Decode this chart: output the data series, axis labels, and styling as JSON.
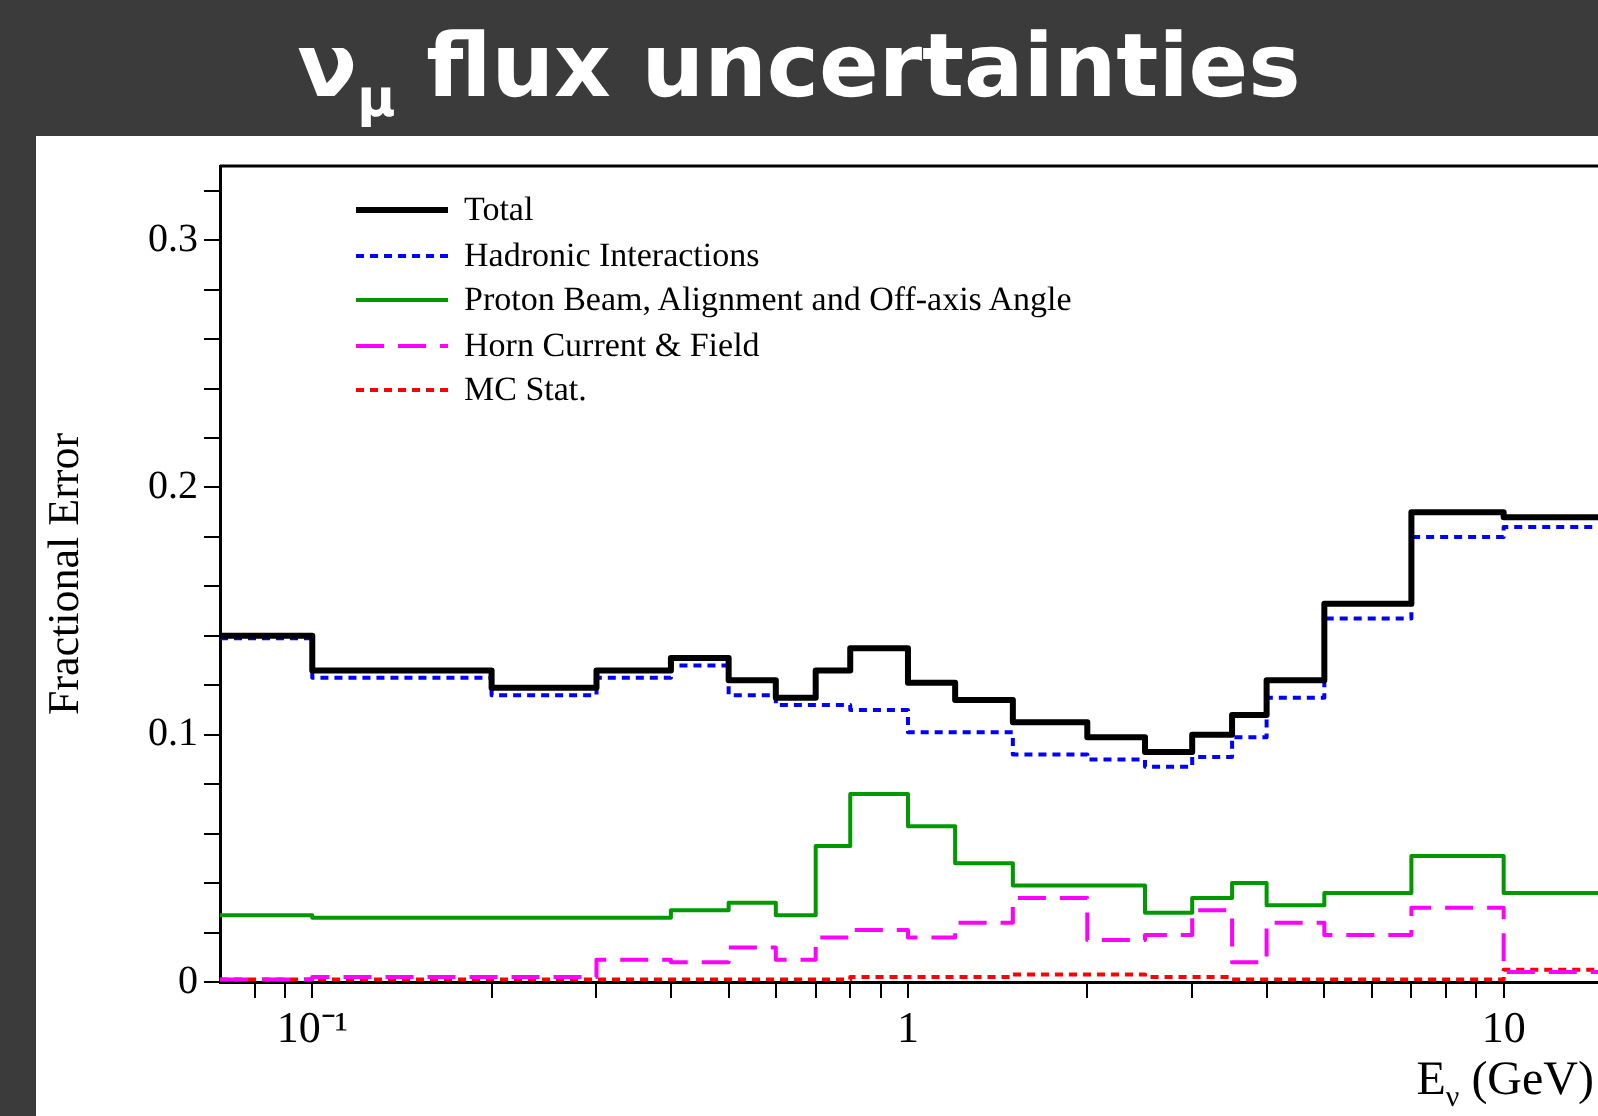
{
  "chart_data": {
    "type": "step",
    "title": "ν$_{μ}$ flux uncertainties",
    "xlabel": "E$_{ν}$ (GeV)",
    "ylabel": "Fractional Error",
    "x": [
      0.07,
      0.1,
      0.2,
      0.3,
      0.4,
      0.5,
      0.6,
      0.7,
      0.8,
      1.0,
      1.2,
      1.5,
      2.0,
      2.5,
      3.0,
      3.5,
      4.0,
      5.0,
      7.0,
      10.0,
      14.4
    ],
    "series": [
      {
        "name": "Total",
        "color": "#000000",
        "line_style": "solid",
        "values": [
          0.14,
          0.126,
          0.119,
          0.126,
          0.131,
          0.122,
          0.115,
          0.126,
          0.135,
          0.121,
          0.114,
          0.105,
          0.099,
          0.093,
          0.1,
          0.108,
          0.122,
          0.153,
          0.19,
          0.188,
          0.188
        ]
      },
      {
        "name": "Hadronic Interactions",
        "color": "#0000ff",
        "line_style": "dotted",
        "values": [
          0.139,
          0.123,
          0.116,
          0.123,
          0.128,
          0.116,
          0.112,
          0.112,
          0.11,
          0.101,
          0.101,
          0.092,
          0.09,
          0.087,
          0.091,
          0.099,
          0.115,
          0.147,
          0.18,
          0.184,
          0.184
        ]
      },
      {
        "name": "Proton Beam, Alignment and Off-axis Angle",
        "color": "#009900",
        "line_style": "solid",
        "values": [
          0.027,
          0.026,
          0.026,
          0.026,
          0.029,
          0.032,
          0.027,
          0.055,
          0.076,
          0.063,
          0.048,
          0.039,
          0.039,
          0.028,
          0.034,
          0.04,
          0.031,
          0.036,
          0.051,
          0.036,
          0.036
        ]
      },
      {
        "name": "Horn Current & Field",
        "color": "#ff00ff",
        "line_style": "dashed",
        "values": [
          0.001,
          0.002,
          0.002,
          0.009,
          0.008,
          0.014,
          0.009,
          0.018,
          0.021,
          0.018,
          0.024,
          0.034,
          0.017,
          0.019,
          0.029,
          0.008,
          0.024,
          0.019,
          0.03,
          0.004,
          0.004
        ]
      },
      {
        "name": "MC Stat.",
        "color": "#ff0000",
        "line_style": "dotted",
        "values": [
          0.001,
          0.001,
          0.001,
          0.001,
          0.001,
          0.001,
          0.001,
          0.001,
          0.002,
          0.002,
          0.002,
          0.003,
          0.003,
          0.002,
          0.002,
          0.001,
          0.001,
          0.001,
          0.001,
          0.005,
          0.005
        ]
      }
    ],
    "log": "x",
    "xlim": [
      0.07,
      14.4
    ],
    "xticks": [
      {
        "value": 0.08,
        "label": null
      },
      {
        "value": 0.09,
        "label": null
      },
      {
        "value": 0.1,
        "label": "10⁻¹"
      },
      {
        "value": 0.2,
        "label": null
      },
      {
        "value": 0.3,
        "label": null
      },
      {
        "value": 0.4,
        "label": null
      },
      {
        "value": 0.5,
        "label": null
      },
      {
        "value": 0.6,
        "label": null
      },
      {
        "value": 0.7,
        "label": null
      },
      {
        "value": 0.8,
        "label": null
      },
      {
        "value": 0.9,
        "label": null
      },
      1,
      {
        "value": 2,
        "label": null
      },
      {
        "value": 3,
        "label": null
      },
      {
        "value": 4,
        "label": null
      },
      {
        "value": 5,
        "label": null
      },
      {
        "value": 6,
        "label": null
      },
      {
        "value": 7,
        "label": null
      },
      {
        "value": 8,
        "label": null
      },
      {
        "value": 9,
        "label": null
      },
      10
    ],
    "ylim": [
      0,
      0.33
    ],
    "yticks": [
      0,
      {
        "value": 0.02,
        "label": null
      },
      {
        "value": 0.04,
        "label": null
      },
      {
        "value": 0.06,
        "label": null
      },
      {
        "value": 0.08,
        "label": null
      },
      0.1,
      {
        "value": 0.12,
        "label": null
      },
      {
        "value": 0.14,
        "label": null
      },
      {
        "value": 0.16,
        "label": null
      },
      {
        "value": 0.18,
        "label": null
      },
      0.2,
      {
        "value": 0.22,
        "label": null
      },
      {
        "value": 0.24,
        "label": null
      },
      {
        "value": 0.26,
        "label": null
      },
      {
        "value": 0.28,
        "label": null
      },
      0.3,
      {
        "value": 0.32,
        "label": null
      }
    ],
    "grid": false,
    "legend": "top left"
  }
}
